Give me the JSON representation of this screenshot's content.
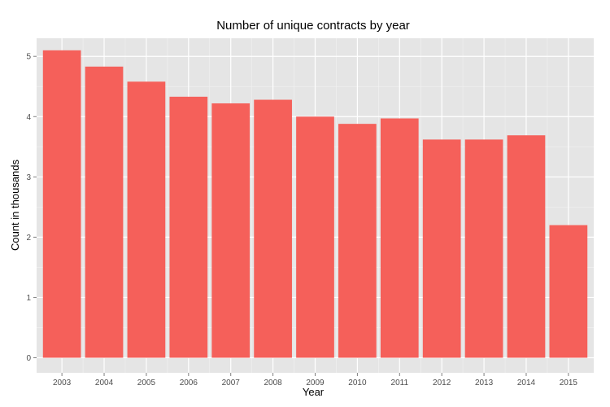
{
  "chart_data": {
    "type": "bar",
    "title": "Number of unique contracts by year",
    "xlabel": "Year",
    "ylabel": "Count in thousands",
    "categories": [
      "2003",
      "2004",
      "2005",
      "2006",
      "2007",
      "2008",
      "2009",
      "2010",
      "2011",
      "2012",
      "2013",
      "2014",
      "2015"
    ],
    "values": [
      5.1,
      4.83,
      4.58,
      4.33,
      4.22,
      4.28,
      4.0,
      3.88,
      3.97,
      3.62,
      3.62,
      3.69,
      2.2
    ],
    "ylim": [
      -0.25,
      5.3
    ],
    "yticks": [
      0,
      1,
      2,
      3,
      4,
      5
    ],
    "grid": true,
    "legend": "none",
    "colors": {
      "bar": "#F5605A",
      "panel": "#E5E5E5",
      "grid_major": "#FFFFFF",
      "grid_minor": "#F2F2F2",
      "tick_text": "#4D4D4D",
      "tick_mark": "#7F7F7F"
    }
  }
}
